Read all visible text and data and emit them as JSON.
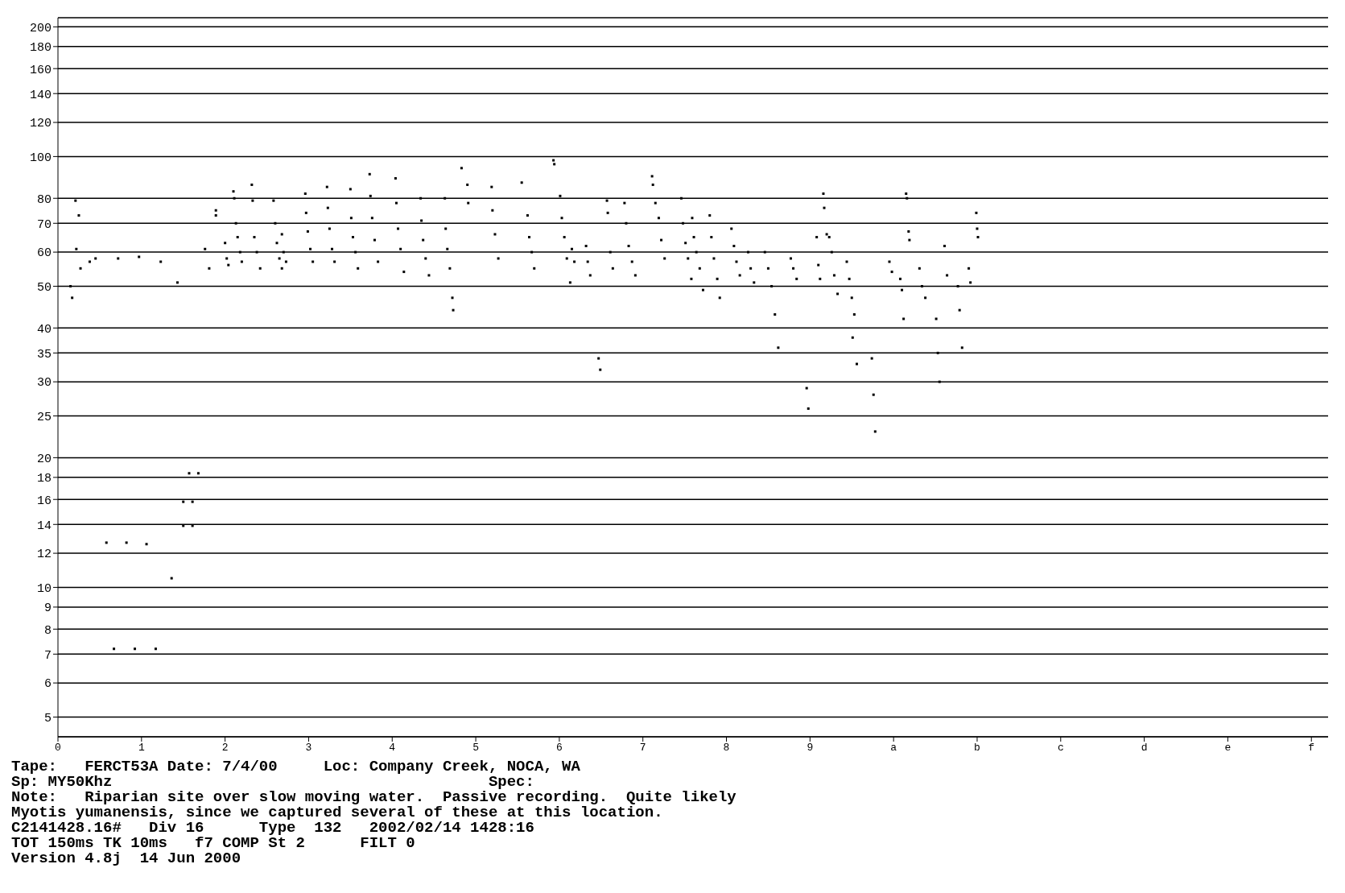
{
  "chart_data": {
    "type": "scatter",
    "color": "#000000",
    "marker": "square",
    "log": "y",
    "grid": "y",
    "x": [
      0.15,
      0.17,
      0.21,
      0.25,
      0.22,
      0.27,
      0.38,
      0.45,
      0.72,
      0.97,
      1.23,
      1.43,
      0.58,
      0.82,
      1.06,
      0.67,
      0.92,
      1.17,
      1.36,
      1.5,
      1.61,
      1.5,
      1.61,
      1.57,
      1.68,
      1.76,
      1.81,
      1.89,
      1.89,
      2.0,
      2.02,
      2.04,
      2.1,
      2.11,
      2.13,
      2.15,
      2.18,
      2.2,
      2.32,
      2.33,
      2.35,
      2.38,
      2.42,
      2.58,
      2.6,
      2.62,
      2.65,
      2.68,
      2.68,
      2.7,
      2.73,
      2.96,
      2.97,
      2.99,
      3.02,
      3.05,
      3.22,
      3.23,
      3.25,
      3.28,
      3.31,
      3.5,
      3.51,
      3.53,
      3.56,
      3.59,
      3.73,
      3.74,
      3.76,
      3.79,
      3.83,
      4.04,
      4.05,
      4.07,
      4.1,
      4.14,
      4.34,
      4.35,
      4.37,
      4.4,
      4.44,
      4.63,
      4.64,
      4.66,
      4.69,
      4.72,
      4.73,
      4.83,
      4.9,
      4.91,
      5.19,
      5.2,
      5.23,
      5.27,
      5.55,
      5.62,
      5.64,
      5.67,
      5.7,
      5.93,
      5.94,
      6.01,
      6.03,
      6.06,
      6.09,
      6.13,
      6.15,
      6.18,
      6.32,
      6.34,
      6.37,
      6.47,
      6.49,
      6.57,
      6.58,
      6.61,
      6.64,
      6.78,
      6.8,
      6.83,
      6.87,
      6.91,
      7.11,
      7.12,
      7.15,
      7.19,
      7.22,
      7.26,
      7.46,
      7.48,
      7.51,
      7.54,
      7.58,
      7.59,
      7.61,
      7.64,
      7.68,
      7.72,
      7.8,
      7.82,
      7.85,
      7.89,
      7.92,
      8.06,
      8.09,
      8.12,
      8.16,
      8.26,
      8.29,
      8.33,
      8.46,
      8.5,
      8.54,
      8.58,
      8.62,
      8.77,
      8.8,
      8.84,
      8.96,
      8.98,
      9.08,
      9.1,
      9.12,
      9.16,
      9.17,
      9.2,
      9.23,
      9.26,
      9.29,
      9.33,
      9.44,
      9.47,
      9.5,
      9.53,
      9.51,
      9.56,
      9.74,
      9.76,
      9.78,
      9.95,
      9.98,
      10.08,
      10.1,
      10.12,
      10.15,
      10.16,
      10.18,
      10.19,
      10.31,
      10.34,
      10.38,
      10.51,
      10.53,
      10.55,
      10.61,
      10.64,
      10.77,
      10.79,
      10.82,
      10.9,
      10.92,
      10.99,
      11.0,
      11.01
    ],
    "values": [
      50,
      47,
      79,
      73,
      61,
      55,
      57,
      58,
      58,
      58.5,
      57,
      51,
      12.7,
      12.7,
      12.6,
      7.2,
      7.2,
      7.2,
      10.5,
      15.8,
      15.8,
      13.9,
      13.9,
      18.4,
      18.4,
      61,
      55,
      75,
      73,
      63,
      58,
      56,
      83,
      80,
      70,
      65,
      60,
      57,
      86,
      79,
      65,
      60,
      55,
      79,
      70,
      63,
      58,
      55,
      66,
      60,
      57,
      82,
      74,
      67,
      61,
      57,
      85,
      76,
      68,
      61,
      57,
      84,
      72,
      65,
      60,
      55,
      91,
      81,
      72,
      64,
      57,
      89,
      78,
      68,
      61,
      54,
      80,
      71,
      64,
      58,
      53,
      80,
      68,
      61,
      55,
      47,
      44,
      94,
      86,
      78,
      85,
      75,
      66,
      58,
      87,
      73,
      65,
      60,
      55,
      98,
      96,
      81,
      72,
      65,
      58,
      51,
      61,
      57,
      62,
      57,
      53,
      34,
      32,
      79,
      74,
      60,
      55,
      78,
      70,
      62,
      57,
      53,
      90,
      86,
      78,
      72,
      64,
      58,
      80,
      70,
      63,
      58,
      52,
      72,
      65,
      60,
      55,
      49,
      73,
      65,
      58,
      52,
      47,
      68,
      62,
      57,
      53,
      60,
      55,
      51,
      60,
      55,
      50,
      43,
      36,
      58,
      55,
      52,
      29,
      26,
      65,
      56,
      52,
      82,
      76,
      66,
      65,
      60,
      53,
      48,
      57,
      52,
      47,
      43,
      38,
      33,
      34,
      28,
      23,
      57,
      54,
      52,
      49,
      42,
      82,
      80,
      67,
      64,
      55,
      50,
      47,
      42,
      35,
      30,
      62,
      53,
      50,
      44,
      36,
      55,
      51,
      74,
      68,
      65
    ],
    "xlim": [
      0,
      15.2
    ],
    "xticks": [
      0,
      1,
      2,
      3,
      4,
      5,
      6,
      7,
      8,
      9,
      {
        "value": 10,
        "label": "a"
      },
      {
        "value": 11,
        "label": "b"
      },
      {
        "value": 12,
        "label": "c"
      },
      {
        "value": 13,
        "label": "d"
      },
      {
        "value": 14,
        "label": "e"
      },
      {
        "value": 15,
        "label": "f"
      }
    ],
    "ylim": [
      4.5,
      210
    ],
    "yticks": [
      5,
      6,
      7,
      8,
      9,
      10,
      12,
      14,
      16,
      18,
      20,
      25,
      30,
      35,
      40,
      50,
      60,
      70,
      80,
      100,
      120,
      140,
      160,
      180,
      200
    ],
    "annotations": [
      "Tape:   FERCT53A Date: 7/4/00     Loc: Company Creek, NOCA, WA",
      "Sp: MY50Khz                                         Spec:",
      "Note:   Riparian site over slow moving water.  Passive recording.  Quite likely",
      "Myotis yumanensis, since we captured several of these at this location.",
      "C2141428.16#   Div 16      Type  132   2002/02/14 1428:16",
      "TOT 150ms TK 10ms   f7 COMP St 2      FILT 0",
      "Version 4.8j  14 Jun 2000"
    ]
  }
}
